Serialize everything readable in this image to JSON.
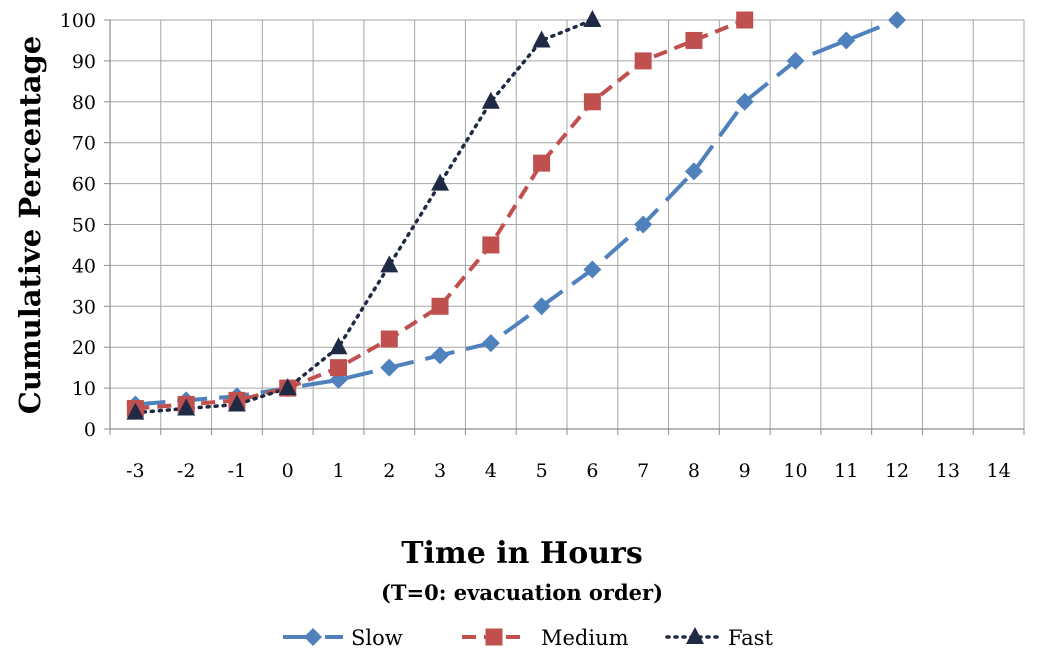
{
  "chart_data": {
    "type": "line",
    "xlabel": "Time in Hours",
    "xlabel_sub": "(T=0: evacuation order)",
    "ylabel": "Cumulative Percentage",
    "x_categories": [
      "-3",
      "-2",
      "-1",
      "0",
      "1",
      "2",
      "3",
      "4",
      "5",
      "6",
      "7",
      "8",
      "9",
      "10",
      "11",
      "12",
      "13",
      "14"
    ],
    "ylim": [
      0,
      100
    ],
    "y_ticks": [
      0,
      10,
      20,
      30,
      40,
      50,
      60,
      70,
      80,
      90,
      100
    ],
    "grid": true,
    "legend_position": "bottom",
    "series": [
      {
        "name": "Slow",
        "color": "#4f81bd",
        "marker": "diamond",
        "line_style": "long-dash",
        "x": [
          -3,
          -2,
          -1,
          0,
          1,
          2,
          3,
          4,
          5,
          6,
          7,
          8,
          9,
          10,
          11,
          12
        ],
        "values": [
          6,
          7,
          8,
          10,
          12,
          15,
          18,
          21,
          30,
          39,
          50,
          63,
          80,
          90,
          95,
          100
        ]
      },
      {
        "name": "Medium",
        "color": "#c0504d",
        "marker": "square",
        "line_style": "dash",
        "x": [
          -3,
          -2,
          -1,
          0,
          1,
          2,
          3,
          4,
          5,
          6,
          7,
          8,
          9
        ],
        "values": [
          5,
          6,
          7,
          10,
          15,
          22,
          30,
          45,
          65,
          80,
          90,
          95,
          100
        ]
      },
      {
        "name": "Fast",
        "color": "#1f2a44",
        "marker": "triangle",
        "line_style": "dot",
        "x": [
          -3,
          -2,
          -1,
          0,
          1,
          2,
          3,
          4,
          5,
          6
        ],
        "values": [
          4,
          5,
          6,
          10,
          20,
          40,
          60,
          80,
          95,
          100
        ]
      }
    ]
  }
}
